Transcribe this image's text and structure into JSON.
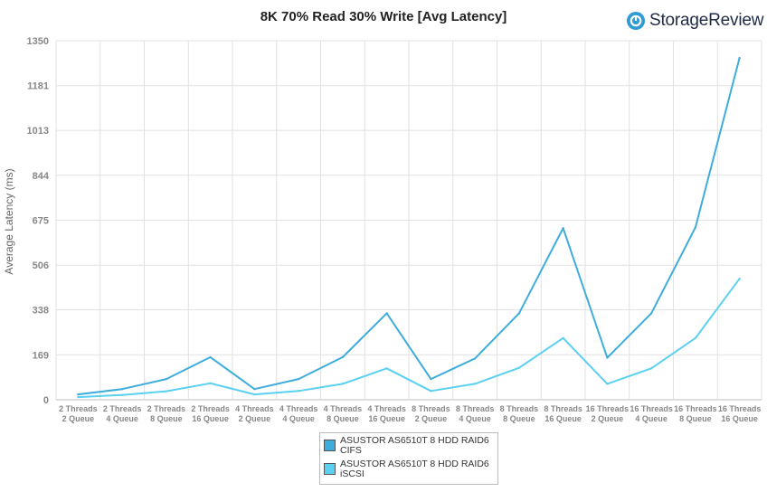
{
  "brand": {
    "name": "StorageReview",
    "logo_icon": "storagereview-logo-icon",
    "color": "#2e9bd6"
  },
  "chart_data": {
    "type": "line",
    "title": "8K 70% Read 30% Write [Avg Latency]",
    "ylabel": "Average Latency  (ms)",
    "xlabel": "",
    "ylim": [
      0,
      1350
    ],
    "yticks": [
      "1350",
      "1181",
      "1013",
      "844",
      "675",
      "506",
      "338",
      "169",
      "0"
    ],
    "ytick_values": [
      1350,
      1181,
      1013,
      844,
      675,
      506,
      338,
      169,
      0
    ],
    "grid": true,
    "legend_position": "bottom-center",
    "categories": [
      [
        "2 Threads",
        "2 Queue"
      ],
      [
        "2 Threads",
        "4 Queue"
      ],
      [
        "2 Threads",
        "8 Queue"
      ],
      [
        "2 Threads",
        "16 Queue"
      ],
      [
        "4 Threads",
        "2 Queue"
      ],
      [
        "4 Threads",
        "4 Queue"
      ],
      [
        "4 Threads",
        "8 Queue"
      ],
      [
        "4 Threads",
        "16 Queue"
      ],
      [
        "8 Threads",
        "2 Queue"
      ],
      [
        "8 Threads",
        "4 Queue"
      ],
      [
        "8 Threads",
        "8 Queue"
      ],
      [
        "8 Threads",
        "16 Queue"
      ],
      [
        "16 Threads",
        "2 Queue"
      ],
      [
        "16 Threads",
        "4 Queue"
      ],
      [
        "16 Threads",
        "8 Queue"
      ],
      [
        "16 Threads",
        "16 Queue"
      ]
    ],
    "series": [
      {
        "name": "ASUSTOR AS6510T 8 HDD RAID6 CIFS",
        "legend_lines": [
          "ASUSTOR AS6510T 8 HDD RAID6",
          "CIFS"
        ],
        "color": "#3eaddc",
        "values": [
          20,
          40,
          78,
          160,
          40,
          78,
          160,
          325,
          78,
          155,
          325,
          645,
          158,
          325,
          648,
          1285
        ]
      },
      {
        "name": "ASUSTOR AS6510T 8 HDD RAID6 iSCSI",
        "legend_lines": [
          "ASUSTOR AS6510T 8 HDD RAID6",
          "iSCSI"
        ],
        "color": "#5bd0f0",
        "values": [
          10,
          18,
          32,
          62,
          20,
          33,
          60,
          118,
          33,
          60,
          120,
          232,
          60,
          118,
          232,
          455
        ]
      }
    ]
  }
}
